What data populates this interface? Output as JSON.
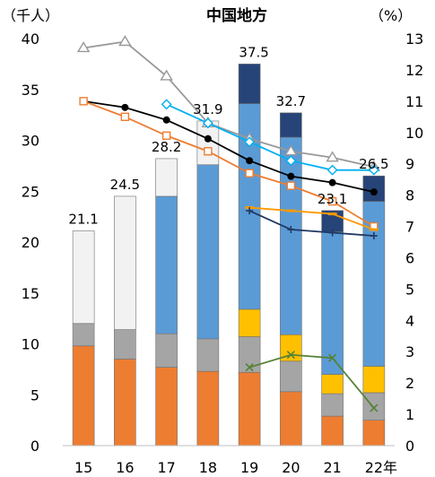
{
  "chart_data": {
    "type": "bar",
    "title": "中国地方",
    "y_left_unit": "（千人）",
    "y_right_unit": "（%）",
    "x_suffix": "年",
    "categories": [
      "15",
      "16",
      "17",
      "18",
      "19",
      "20",
      "21",
      "22"
    ],
    "ylim_left": [
      0,
      40
    ],
    "ylim_right": [
      0,
      13
    ],
    "left_ticks": [
      "0",
      "5",
      "10",
      "15",
      "20",
      "25",
      "30",
      "35",
      "40"
    ],
    "right_ticks": [
      "0",
      "1",
      "2",
      "3",
      "4",
      "5",
      "6",
      "7",
      "8",
      "9",
      "10",
      "11",
      "12",
      "13"
    ],
    "totals": [
      "21.1",
      "24.5",
      "28.2",
      "31.9",
      "37.5",
      "32.7",
      "23.1",
      "26.5"
    ],
    "stack_series": [
      {
        "color": "#ED7D31",
        "values": [
          9.8,
          8.5,
          7.7,
          7.3,
          7.2,
          5.3,
          2.9,
          2.5
        ]
      },
      {
        "color": "#A5A5A5",
        "values": [
          2.2,
          2.9,
          3.3,
          3.2,
          3.5,
          3.0,
          2.2,
          2.7
        ]
      },
      {
        "color": "#FFC000",
        "values": [
          0,
          0,
          0,
          0,
          2.7,
          2.6,
          1.9,
          2.6
        ]
      },
      {
        "color": "#5B9BD5",
        "values": [
          0,
          0,
          13.5,
          17.1,
          20.2,
          19.4,
          14.0,
          16.2
        ]
      },
      {
        "color": "#264478",
        "values": [
          0,
          0,
          0,
          0,
          3.9,
          2.4,
          2.1,
          2.5
        ]
      },
      {
        "color": "#F2F2F2",
        "values": [
          9.1,
          13.1,
          3.7,
          4.3,
          0,
          0,
          0,
          0
        ]
      }
    ],
    "line_series": [
      {
        "color": "#999999",
        "marker": "triangle",
        "values": [
          12.7,
          12.9,
          11.8,
          10.3,
          9.8,
          9.4,
          9.2,
          8.9
        ]
      },
      {
        "color": "#000000",
        "marker": "circle",
        "values": [
          11.0,
          10.8,
          10.4,
          9.8,
          9.1,
          8.6,
          8.4,
          8.1
        ]
      },
      {
        "color": "#00B0F0",
        "marker": "diamond",
        "values": [
          null,
          null,
          10.9,
          10.3,
          9.7,
          9.1,
          8.8,
          8.8
        ]
      },
      {
        "color": "#ED7D31",
        "marker": "square",
        "values": [
          11.0,
          10.5,
          9.9,
          9.4,
          8.7,
          8.3,
          7.8,
          7.0
        ]
      },
      {
        "color": "#FF9900",
        "marker": "dash",
        "values": [
          null,
          null,
          null,
          null,
          7.6,
          7.5,
          7.4,
          6.9
        ]
      },
      {
        "color": "#203864",
        "marker": "plus",
        "values": [
          null,
          null,
          null,
          null,
          7.5,
          6.9,
          6.8,
          6.7
        ]
      },
      {
        "color": "#548235",
        "marker": "x",
        "values": [
          null,
          null,
          null,
          null,
          2.5,
          2.9,
          2.8,
          1.2
        ]
      }
    ]
  }
}
